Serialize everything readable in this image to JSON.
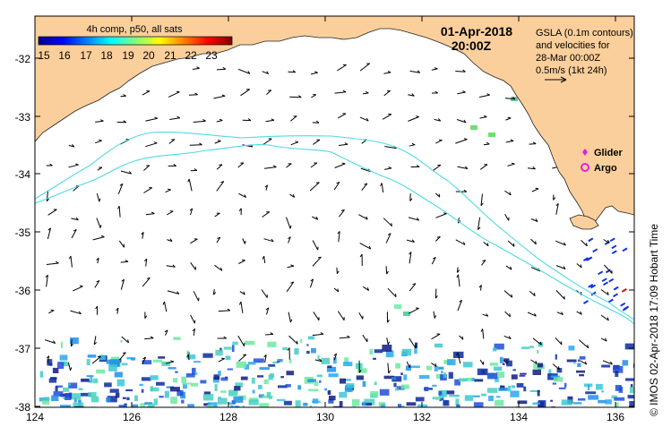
{
  "map": {
    "title": "4h comp, p50, all sats",
    "date": "01-Apr-2018",
    "time": "20:00Z",
    "info_lines": [
      "GSLA (0.1m contours)",
      "and velocities for",
      "28-Mar 00:00Z",
      "0.5m/s (1kt 24h)"
    ],
    "legend": {
      "glider": "Glider",
      "argo": "Argo"
    },
    "credit": "© IMOS 02-Apr-2018 17:09 Hobart Time",
    "colorbar": {
      "min": 14,
      "max": 24,
      "ticks": [
        "15",
        "16",
        "17",
        "18",
        "19",
        "20",
        "21",
        "22",
        "23"
      ]
    },
    "lat_ticks": [
      "-32",
      "-33",
      "-34",
      "-35",
      "-36",
      "-37",
      "-38"
    ],
    "lon_ticks": [
      "124",
      "126",
      "128",
      "130",
      "132",
      "134",
      "136"
    ],
    "colors": {
      "land": "#fbcf9b",
      "contour": "#4fd9e3",
      "ocean": "#ffffff"
    }
  }
}
